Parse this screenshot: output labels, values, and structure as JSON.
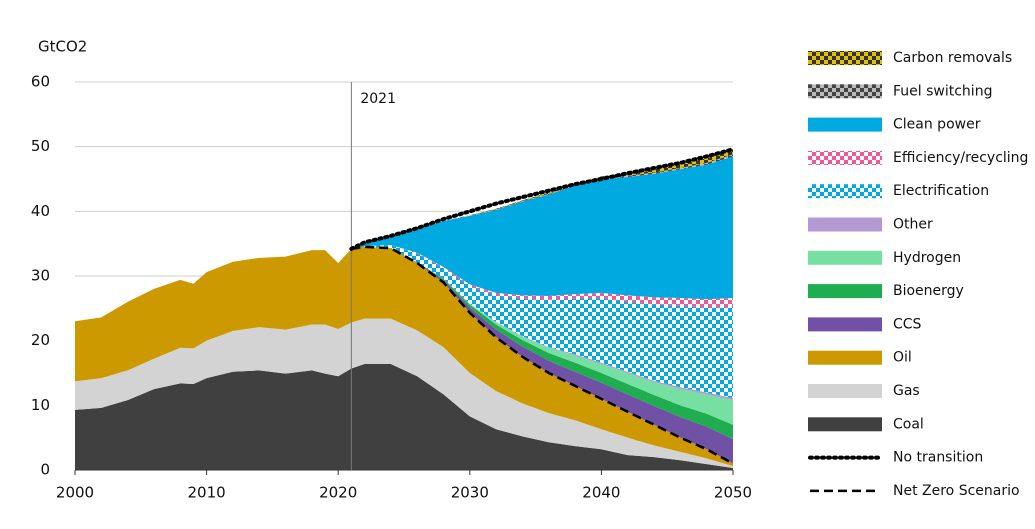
{
  "chart_data": {
    "type": "stacked-area",
    "ylabel": "GtCO2",
    "xlim": [
      2000,
      2050
    ],
    "xticks": [
      2000,
      2010,
      2020,
      2030,
      2040,
      2050
    ],
    "ylim": [
      0,
      60
    ],
    "yticks": [
      0,
      10,
      20,
      30,
      40,
      50,
      60
    ],
    "grid": true,
    "vline": 2021,
    "x": [
      2000,
      2002,
      2004,
      2006,
      2008,
      2009,
      2010,
      2012,
      2014,
      2016,
      2018,
      2019,
      2020,
      2021,
      2022,
      2024,
      2026,
      2028,
      2030,
      2032,
      2034,
      2036,
      2038,
      2040,
      2042,
      2044,
      2046,
      2048,
      2050
    ],
    "series": [
      {
        "name": "Coal",
        "color": "#404040",
        "values": [
          9.3,
          9.6,
          10.8,
          12.5,
          13.4,
          13.3,
          14.2,
          15.2,
          15.4,
          14.9,
          15.4,
          14.9,
          14.5,
          15.7,
          16.4,
          16.4,
          14.5,
          11.7,
          8.3,
          6.3,
          5.2,
          4.3,
          3.7,
          3.2,
          2.3,
          2.0,
          1.5,
          0.9,
          0.3
        ]
      },
      {
        "name": "Gas",
        "color": "#d3d3d3",
        "values": [
          4.4,
          4.6,
          4.6,
          4.7,
          5.5,
          5.5,
          5.8,
          6.3,
          6.7,
          6.8,
          7.1,
          7.6,
          7.3,
          7.1,
          7.0,
          7.0,
          7.1,
          7.3,
          6.7,
          5.9,
          5.1,
          4.5,
          4.0,
          3.1,
          2.7,
          1.8,
          1.3,
          0.9,
          0.3
        ]
      },
      {
        "name": "Oil",
        "color": "#cc9a00",
        "values": [
          9.3,
          9.4,
          10.6,
          10.8,
          10.5,
          10.0,
          10.6,
          10.7,
          10.7,
          11.3,
          11.5,
          11.5,
          10.2,
          11.4,
          11.1,
          10.9,
          10.4,
          10.0,
          9.3,
          8.3,
          7.2,
          6.2,
          5.3,
          4.7,
          4.0,
          3.2,
          2.2,
          1.4,
          0.4
        ]
      },
      {
        "name": "CCS",
        "color": "#7151a6",
        "values": [
          null,
          null,
          null,
          null,
          null,
          null,
          null,
          null,
          null,
          null,
          null,
          null,
          null,
          0,
          0,
          0,
          0.1,
          0.4,
          0.8,
          1.2,
          1.6,
          1.9,
          2.2,
          2.5,
          2.7,
          2.9,
          3.2,
          3.5,
          3.8
        ]
      },
      {
        "name": "Bioenergy",
        "color": "#1fae4f",
        "values": [
          null,
          null,
          null,
          null,
          null,
          null,
          null,
          null,
          null,
          null,
          null,
          null,
          null,
          0,
          0,
          0,
          0,
          0.2,
          0.5,
          0.8,
          1.0,
          1.2,
          1.4,
          1.5,
          1.6,
          1.7,
          1.8,
          2.0,
          2.2
        ]
      },
      {
        "name": "Hydrogen",
        "color": "#76e0a2",
        "values": [
          null,
          null,
          null,
          null,
          null,
          null,
          null,
          null,
          null,
          null,
          null,
          null,
          null,
          0,
          0,
          0,
          0,
          0,
          0.1,
          0.3,
          0.5,
          0.8,
          1.1,
          1.4,
          1.7,
          2.0,
          2.5,
          3.0,
          3.8
        ]
      },
      {
        "name": "Other",
        "color": "#b39ad3",
        "values": [
          null,
          null,
          null,
          null,
          null,
          null,
          null,
          null,
          null,
          null,
          null,
          null,
          null,
          0,
          0,
          0,
          0,
          0,
          0,
          0.1,
          0.1,
          0.1,
          0.2,
          0.2,
          0.2,
          0.2,
          0.3,
          0.3,
          0.3
        ]
      },
      {
        "name": "Electrification",
        "color": "#00a9e0",
        "pattern": "#ffffff",
        "values": [
          null,
          null,
          null,
          null,
          null,
          null,
          null,
          null,
          null,
          null,
          null,
          null,
          null,
          0,
          0.1,
          0.5,
          1.4,
          1.6,
          2.7,
          4.1,
          5.8,
          7.3,
          8.6,
          10.0,
          10.8,
          11.8,
          12.6,
          13.1,
          14.1
        ]
      },
      {
        "name": "Efficiency/recycling",
        "color": "#f0569a",
        "pattern": "#ffffff",
        "values": [
          null,
          null,
          null,
          null,
          null,
          null,
          null,
          null,
          null,
          null,
          null,
          null,
          null,
          0,
          0,
          0,
          0.1,
          0.2,
          0.3,
          0.4,
          0.5,
          0.6,
          0.7,
          0.8,
          1.0,
          1.1,
          1.2,
          1.3,
          1.4
        ]
      },
      {
        "name": "Clean power",
        "color": "#00a9e0",
        "values": [
          null,
          null,
          null,
          null,
          null,
          null,
          null,
          null,
          null,
          null,
          null,
          null,
          null,
          0,
          0.6,
          1.4,
          3.8,
          7.1,
          10.6,
          12.8,
          14.5,
          15.7,
          16.8,
          17.5,
          18.3,
          19.1,
          19.9,
          20.8,
          21.9
        ]
      },
      {
        "name": "Fuel switching",
        "color": "#444444",
        "pattern": "#bbbbbb",
        "values": [
          null,
          null,
          null,
          null,
          null,
          null,
          null,
          null,
          null,
          null,
          null,
          null,
          null,
          0,
          0,
          0,
          0,
          0,
          0.1,
          0.1,
          0.1,
          0.1,
          0.1,
          0.2,
          0.2,
          0.2,
          0.2,
          0.3,
          0.3
        ]
      },
      {
        "name": "Carbon removals",
        "color": "#e2c000",
        "pattern": "#333333",
        "values": [
          null,
          null,
          null,
          null,
          null,
          null,
          null,
          null,
          null,
          null,
          null,
          null,
          null,
          0,
          0,
          0,
          0,
          0,
          0,
          0.1,
          0.1,
          0.2,
          0.2,
          0.3,
          0.4,
          0.5,
          0.6,
          0.7,
          0.8
        ]
      }
    ],
    "lines": [
      {
        "name": "No transition",
        "color": "#000000",
        "style": "dotted",
        "values": [
          null,
          null,
          null,
          null,
          null,
          null,
          null,
          null,
          null,
          null,
          null,
          null,
          null,
          34.2,
          35.2,
          36.2,
          37.4,
          38.8,
          40.0,
          41.2,
          42.2,
          43.2,
          44.2,
          45.0,
          45.9,
          46.7,
          47.5,
          48.5,
          49.6
        ]
      },
      {
        "name": "Net Zero Scenario",
        "color": "#000000",
        "style": "dashed",
        "values": [
          null,
          null,
          null,
          null,
          null,
          null,
          null,
          null,
          null,
          null,
          null,
          null,
          null,
          34.2,
          34.5,
          34.3,
          32.0,
          29.0,
          24.3,
          20.5,
          17.5,
          15.0,
          13.0,
          11.0,
          9.0,
          7.0,
          5.0,
          3.2,
          1.0
        ]
      }
    ]
  }
}
